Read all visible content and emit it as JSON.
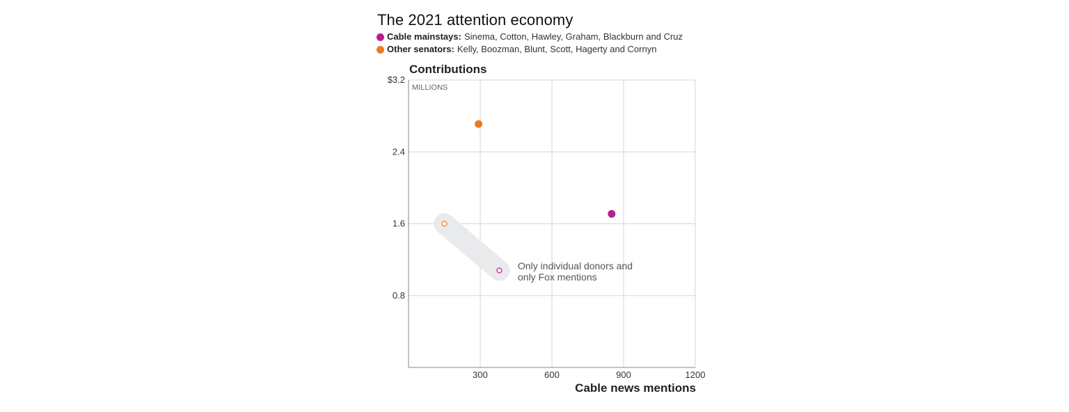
{
  "chart_data": {
    "type": "scatter",
    "title": "The 2021 attention economy",
    "xlabel": "Cable news mentions",
    "ylabel": "Contributions",
    "y_units": "MILLIONS",
    "xlim": [
      0,
      1200
    ],
    "ylim": [
      0,
      3.2
    ],
    "x_ticks": [
      300,
      600,
      900,
      1200
    ],
    "x_tick_labels": [
      "300",
      "600",
      "900",
      "1200"
    ],
    "y_ticks": [
      0.8,
      1.6,
      2.4,
      3.2
    ],
    "y_tick_labels": [
      "0.8",
      "1.6",
      "2.4",
      "$3.2"
    ],
    "grid": true,
    "legend_placement": "top",
    "series": [
      {
        "name": "Cable mainstays",
        "members": "Sinema, Cotton, Hawley, Graham, Blackburn and Cruz",
        "color": "#b5208f",
        "points": [
          {
            "x": 850,
            "y": 1.71,
            "style": "filled"
          },
          {
            "x": 380,
            "y": 1.08,
            "style": "hollow"
          }
        ]
      },
      {
        "name": "Other senators",
        "members": "Kelly, Boozman, Blunt, Scott, Hagerty and Cornyn",
        "color": "#e87c24",
        "points": [
          {
            "x": 293,
            "y": 2.71,
            "style": "filled"
          },
          {
            "x": 150,
            "y": 1.6,
            "style": "hollow"
          }
        ]
      }
    ],
    "annotation": {
      "line1": "Only individual donors and",
      "line2": "only Fox mentions"
    }
  }
}
